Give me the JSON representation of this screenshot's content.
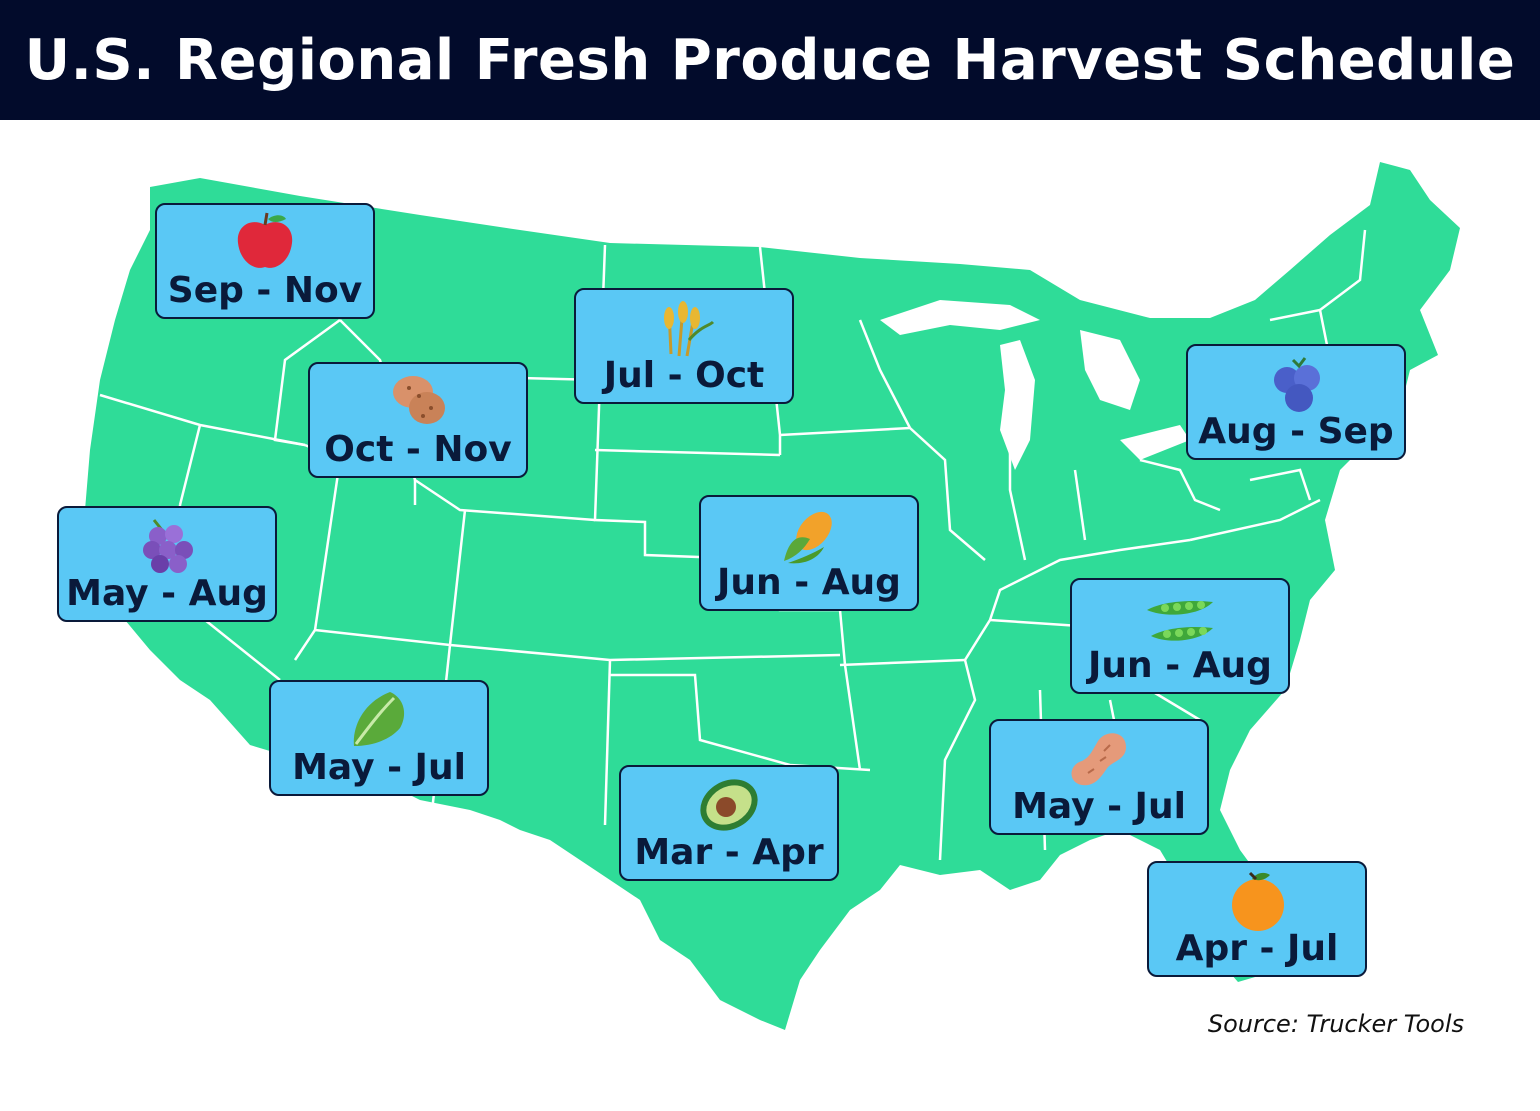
{
  "title": "U.S. Regional Fresh Produce Harvest Schedule",
  "source": "Source: Trucker Tools",
  "colors": {
    "header_bg": "#020b2b",
    "land": "#2fdc98",
    "border": "#ffffff",
    "label_bg": "#5ac8f5",
    "label_border": "#0a1a3a"
  },
  "labels": [
    {
      "id": "apple",
      "icon": "apple-icon",
      "text": "Sep - Nov"
    },
    {
      "id": "potato",
      "icon": "potato-icon",
      "text": "Oct - Nov"
    },
    {
      "id": "wheat",
      "icon": "wheat-icon",
      "text": "Jul - Oct"
    },
    {
      "id": "blueberry",
      "icon": "blueberry-icon",
      "text": "Aug - Sep"
    },
    {
      "id": "grape",
      "icon": "grape-icon",
      "text": "May - Aug"
    },
    {
      "id": "corn",
      "icon": "corn-icon",
      "text": "Jun - Aug"
    },
    {
      "id": "pea",
      "icon": "pea-pod-icon",
      "text": "Jun - Aug"
    },
    {
      "id": "lettuce",
      "icon": "lettuce-icon",
      "text": "May - Jul"
    },
    {
      "id": "peanut",
      "icon": "peanut-icon",
      "text": "May - Jul"
    },
    {
      "id": "avocado",
      "icon": "avocado-icon",
      "text": "Mar - Apr"
    },
    {
      "id": "orange",
      "icon": "orange-icon",
      "text": "Apr - Jul"
    }
  ]
}
